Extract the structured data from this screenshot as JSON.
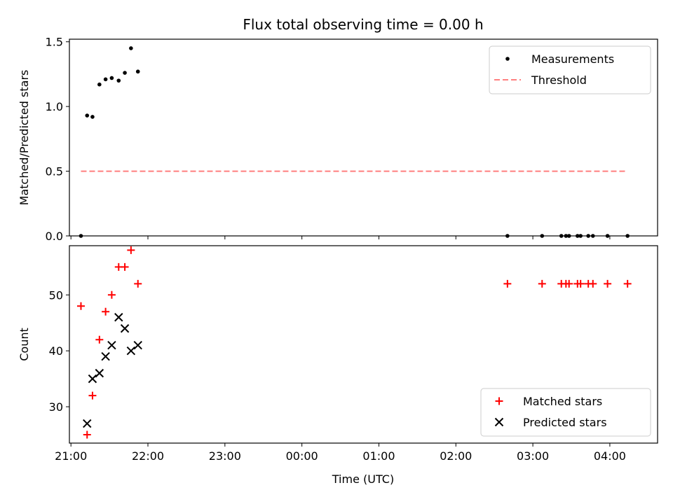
{
  "chart_data": {
    "type": "scatter",
    "title": "Flux total observing time = 0.00 h",
    "xlabel": "Time (UTC)",
    "x_tick_labels": [
      "21:00",
      "22:00",
      "23:00",
      "00:00",
      "01:00",
      "02:00",
      "03:00",
      "04:00"
    ],
    "x_range_hours": [
      20.98,
      28.62
    ],
    "x_ticks_hours": [
      21,
      22,
      23,
      24,
      25,
      26,
      27,
      28
    ],
    "panels": [
      {
        "ylabel": "Matched/Predicted stars",
        "ylim": [
          0,
          1.52
        ],
        "yticks": [
          0,
          0.5,
          1.0,
          1.5
        ],
        "ytick_labels": [
          "0.0",
          "0.5",
          "1.0",
          "1.5"
        ],
        "legend_position": "top-right",
        "series": [
          {
            "name": "Measurements",
            "marker": "dot",
            "color": "#000000",
            "x": [
              21.13,
              21.21,
              21.28,
              21.37,
              21.45,
              21.53,
              21.62,
              21.7,
              21.78,
              21.87,
              26.67,
              27.12,
              27.37,
              27.43,
              27.47,
              27.58,
              27.62,
              27.72,
              27.78,
              27.97,
              28.23
            ],
            "y": [
              0.0,
              0.93,
              0.92,
              1.17,
              1.21,
              1.22,
              1.2,
              1.26,
              1.45,
              1.27,
              0.0,
              0.0,
              0.0,
              0.0,
              0.0,
              0.0,
              0.0,
              0.0,
              0.0,
              0.0,
              0.0
            ]
          },
          {
            "name": "Threshold",
            "marker": "dashed-line",
            "color": "#ff7f7f",
            "x": [
              21.13,
              28.2
            ],
            "y": [
              0.5,
              0.5
            ]
          }
        ]
      },
      {
        "ylabel": "Count",
        "ylim": [
          23.5,
          58.8
        ],
        "yticks": [
          30,
          40,
          50
        ],
        "ytick_labels": [
          "30",
          "40",
          "50"
        ],
        "legend_position": "bottom-right",
        "series": [
          {
            "name": "Matched stars",
            "marker": "plus",
            "color": "#ff0000",
            "x": [
              21.13,
              21.21,
              21.28,
              21.37,
              21.45,
              21.53,
              21.62,
              21.7,
              21.78,
              21.87,
              26.67,
              27.12,
              27.37,
              27.43,
              27.47,
              27.58,
              27.62,
              27.72,
              27.78,
              27.97,
              28.23
            ],
            "y": [
              48,
              25,
              32,
              42,
              47,
              50,
              55,
              55,
              58,
              52,
              52,
              52,
              52,
              52,
              52,
              52,
              52,
              52,
              52,
              52,
              52
            ]
          },
          {
            "name": "Predicted stars",
            "marker": "x",
            "color": "#000000",
            "x": [
              21.21,
              21.28,
              21.37,
              21.45,
              21.53,
              21.62,
              21.7,
              21.78,
              21.87
            ],
            "y": [
              27,
              35,
              36,
              39,
              41,
              46,
              44,
              40,
              41
            ]
          }
        ]
      }
    ]
  }
}
